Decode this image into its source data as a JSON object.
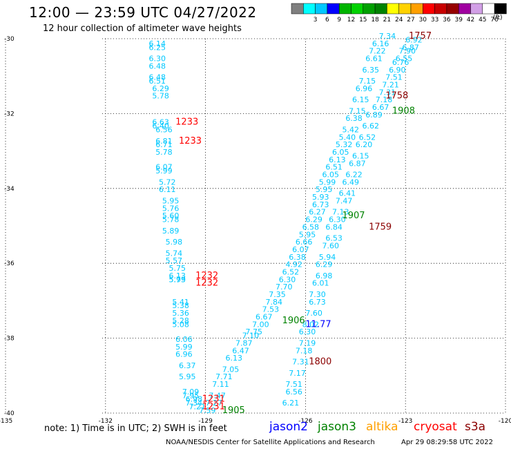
{
  "header": {
    "title": "12:00 — 23:59 UTC 04/27/2022",
    "subtitle": "12 hour collection of altimeter wave heights"
  },
  "color_scale": {
    "units": "(ft)",
    "bins": [
      {
        "label": "",
        "color": "#7f7f7f"
      },
      {
        "label": "3",
        "color": "#00ffff"
      },
      {
        "label": "6",
        "color": "#00c8ff"
      },
      {
        "label": "9",
        "color": "#0000ff"
      },
      {
        "label": "12",
        "color": "#00b400"
      },
      {
        "label": "15",
        "color": "#00d200"
      },
      {
        "label": "18",
        "color": "#00a000"
      },
      {
        "label": "21",
        "color": "#008200"
      },
      {
        "label": "24",
        "color": "#ffff00"
      },
      {
        "label": "27",
        "color": "#ffd200"
      },
      {
        "label": "30",
        "color": "#ffa000"
      },
      {
        "label": "33",
        "color": "#ff0000"
      },
      {
        "label": "36",
        "color": "#c80000"
      },
      {
        "label": "39",
        "color": "#960000"
      },
      {
        "label": "42",
        "color": "#a000a0"
      },
      {
        "label": "45",
        "color": "#d2a0e6"
      },
      {
        "label": "70",
        "color": "#ffffff"
      },
      {
        "label": "",
        "color": "#000000"
      }
    ]
  },
  "axes": {
    "lon_min": -135,
    "lon_max": -120,
    "lat_min": -40,
    "lat_max": -30,
    "x_ticks": [
      {
        "value": -135,
        "label": "-135"
      },
      {
        "value": -132,
        "label": "-132"
      },
      {
        "value": -129,
        "label": "-129"
      },
      {
        "value": -126,
        "label": "-126"
      },
      {
        "value": -123,
        "label": "-123"
      },
      {
        "value": -120,
        "label": "-120"
      }
    ],
    "y_ticks": [
      {
        "value": -30,
        "label": "-30"
      },
      {
        "value": -32,
        "label": "-32"
      },
      {
        "value": -34,
        "label": "-34"
      },
      {
        "value": -36,
        "label": "-36"
      },
      {
        "value": -38,
        "label": "-38"
      },
      {
        "value": -40,
        "label": "-40"
      }
    ],
    "gridlines": "dotted"
  },
  "colors": {
    "wave_low": "#00c8ff",
    "wave_mid": "#00b4e6",
    "jason2": "#0000ff",
    "jason3": "#008200",
    "altika": "#ffa000",
    "cryosat": "#ff0000",
    "s3a": "#8b0000"
  },
  "tracks": [
    {
      "name": "track-west",
      "values": [
        {
          "lon": -130.7,
          "lat": -30.2,
          "v": "6.14"
        },
        {
          "lon": -130.7,
          "lat": -30.3,
          "v": "6.25"
        },
        {
          "lon": -130.7,
          "lat": -30.6,
          "v": "6.30"
        },
        {
          "lon": -130.7,
          "lat": -30.8,
          "v": "6.48"
        },
        {
          "lon": -130.7,
          "lat": -31.1,
          "v": "6.48"
        },
        {
          "lon": -130.7,
          "lat": -31.2,
          "v": "6.51"
        },
        {
          "lon": -130.6,
          "lat": -31.4,
          "v": "6.29"
        },
        {
          "lon": -130.6,
          "lat": -31.6,
          "v": "5.78"
        },
        {
          "lon": -130.6,
          "lat": -32.3,
          "v": "6.63"
        },
        {
          "lon": -130.6,
          "lat": -32.4,
          "v": "6.40"
        },
        {
          "lon": -130.5,
          "lat": -32.5,
          "v": "6.56"
        },
        {
          "lon": -130.5,
          "lat": -32.8,
          "v": "6.81"
        },
        {
          "lon": -130.5,
          "lat": -32.9,
          "v": "6.71"
        },
        {
          "lon": -130.5,
          "lat": -33.1,
          "v": "5.78"
        },
        {
          "lon": -130.5,
          "lat": -33.5,
          "v": "6.07"
        },
        {
          "lon": -130.5,
          "lat": -33.6,
          "v": "5.99"
        },
        {
          "lon": -130.4,
          "lat": -33.9,
          "v": "5.72"
        },
        {
          "lon": -130.4,
          "lat": -34.1,
          "v": "6.11"
        },
        {
          "lon": -130.3,
          "lat": -34.4,
          "v": "5.95"
        },
        {
          "lon": -130.3,
          "lat": -34.6,
          "v": "5.76"
        },
        {
          "lon": -130.3,
          "lat": -34.8,
          "v": "5.60"
        },
        {
          "lon": -130.3,
          "lat": -34.9,
          "v": "5.78"
        },
        {
          "lon": -130.3,
          "lat": -35.2,
          "v": "5.89"
        },
        {
          "lon": -130.2,
          "lat": -35.5,
          "v": "5.98"
        },
        {
          "lon": -130.2,
          "lat": -35.8,
          "v": "5.74"
        },
        {
          "lon": -130.2,
          "lat": -36.0,
          "v": "5.57"
        },
        {
          "lon": -130.1,
          "lat": -36.2,
          "v": "5.75"
        },
        {
          "lon": -130.1,
          "lat": -36.4,
          "v": "6.13"
        },
        {
          "lon": -130.1,
          "lat": -36.5,
          "v": "5.79"
        },
        {
          "lon": -130.1,
          "lat": -36.5,
          "v": "5.93"
        },
        {
          "lon": -130.0,
          "lat": -37.1,
          "v": "5.41"
        },
        {
          "lon": -130.0,
          "lat": -37.2,
          "v": "5.38"
        },
        {
          "lon": -130.0,
          "lat": -37.4,
          "v": "5.36"
        },
        {
          "lon": -130.0,
          "lat": -37.6,
          "v": "5.28"
        },
        {
          "lon": -130.0,
          "lat": -37.7,
          "v": "5.08"
        },
        {
          "lon": -129.9,
          "lat": -38.1,
          "v": "6.06"
        },
        {
          "lon": -129.9,
          "lat": -38.3,
          "v": "5.99"
        },
        {
          "lon": -129.9,
          "lat": -38.5,
          "v": "6.96"
        },
        {
          "lon": -129.8,
          "lat": -38.8,
          "v": "6.37"
        },
        {
          "lon": -129.8,
          "lat": -39.1,
          "v": "5.95"
        },
        {
          "lon": -129.7,
          "lat": -39.5,
          "v": "7.09"
        },
        {
          "lon": -129.7,
          "lat": -39.6,
          "v": "7.95"
        },
        {
          "lon": -129.6,
          "lat": -39.7,
          "v": "6.98"
        },
        {
          "lon": -129.6,
          "lat": -39.8,
          "v": "7.34"
        },
        {
          "lon": -129.5,
          "lat": -39.9,
          "v": "7.21"
        },
        {
          "lon": -129.2,
          "lat": -40.0,
          "v": "7.59"
        },
        {
          "lon": -129.0,
          "lat": -39.8,
          "v": "7.27"
        },
        {
          "lon": -128.9,
          "lat": -39.6,
          "v": "7.47"
        }
      ]
    },
    {
      "name": "track-middle",
      "values": [
        {
          "lon": -128.8,
          "lat": -39.3,
          "v": "7.11"
        },
        {
          "lon": -128.7,
          "lat": -39.1,
          "v": "7.71"
        },
        {
          "lon": -128.5,
          "lat": -38.9,
          "v": "7.05"
        },
        {
          "lon": -128.4,
          "lat": -38.6,
          "v": "6.13"
        },
        {
          "lon": -128.2,
          "lat": -38.4,
          "v": "6.47"
        },
        {
          "lon": -128.1,
          "lat": -38.2,
          "v": "7.87"
        },
        {
          "lon": -127.9,
          "lat": -38.0,
          "v": "7.10"
        },
        {
          "lon": -127.8,
          "lat": -37.9,
          "v": "7.75"
        },
        {
          "lon": -127.6,
          "lat": -37.7,
          "v": "7.00"
        },
        {
          "lon": -127.5,
          "lat": -37.5,
          "v": "6.67"
        },
        {
          "lon": -127.3,
          "lat": -37.3,
          "v": "7.53"
        },
        {
          "lon": -127.2,
          "lat": -37.1,
          "v": "7.84"
        },
        {
          "lon": -127.1,
          "lat": -36.9,
          "v": "7.35"
        },
        {
          "lon": -126.9,
          "lat": -36.7,
          "v": "7.70"
        },
        {
          "lon": -126.8,
          "lat": -36.5,
          "v": "6.30"
        },
        {
          "lon": -126.7,
          "lat": -36.3,
          "v": "6.52"
        },
        {
          "lon": -126.6,
          "lat": -36.1,
          "v": "4.92"
        },
        {
          "lon": -126.5,
          "lat": -35.9,
          "v": "6.38"
        },
        {
          "lon": -126.4,
          "lat": -35.7,
          "v": "6.07"
        },
        {
          "lon": -126.3,
          "lat": -35.5,
          "v": "6.66"
        },
        {
          "lon": -126.2,
          "lat": -35.3,
          "v": "5.95"
        },
        {
          "lon": -126.1,
          "lat": -35.1,
          "v": "6.58"
        },
        {
          "lon": -126.0,
          "lat": -34.9,
          "v": "6.29"
        },
        {
          "lon": -125.9,
          "lat": -34.7,
          "v": "6.27"
        },
        {
          "lon": -125.8,
          "lat": -34.5,
          "v": "6.73"
        },
        {
          "lon": -125.8,
          "lat": -34.3,
          "v": "5.93"
        },
        {
          "lon": -125.7,
          "lat": -34.1,
          "v": "5.95"
        },
        {
          "lon": -125.6,
          "lat": -33.9,
          "v": "5.99"
        },
        {
          "lon": -125.5,
          "lat": -33.7,
          "v": "6.05"
        },
        {
          "lon": -125.4,
          "lat": -33.5,
          "v": "6.51"
        },
        {
          "lon": -125.3,
          "lat": -33.3,
          "v": "6.13"
        },
        {
          "lon": -125.2,
          "lat": -33.1,
          "v": "6.05"
        },
        {
          "lon": -125.1,
          "lat": -32.9,
          "v": "5.32"
        },
        {
          "lon": -125.0,
          "lat": -32.7,
          "v": "5.40"
        },
        {
          "lon": -124.9,
          "lat": -32.5,
          "v": "5.42"
        },
        {
          "lon": -124.8,
          "lat": -32.2,
          "v": "6.38"
        },
        {
          "lon": -124.7,
          "lat": -32.0,
          "v": "7.15"
        },
        {
          "lon": -124.6,
          "lat": -31.7,
          "v": "6.15"
        },
        {
          "lon": -124.5,
          "lat": -31.4,
          "v": "6.96"
        },
        {
          "lon": -124.4,
          "lat": -31.2,
          "v": "7.15"
        },
        {
          "lon": -124.3,
          "lat": -30.9,
          "v": "6.35"
        },
        {
          "lon": -124.2,
          "lat": -30.6,
          "v": "6.61"
        },
        {
          "lon": -124.1,
          "lat": -30.4,
          "v": "7.22"
        },
        {
          "lon": -124.0,
          "lat": -30.2,
          "v": "6.16"
        },
        {
          "lon": -123.8,
          "lat": -30.0,
          "v": "7.34"
        }
      ]
    },
    {
      "name": "track-east",
      "values": [
        {
          "lon": -126.7,
          "lat": -39.8,
          "v": "6.21"
        },
        {
          "lon": -126.6,
          "lat": -39.5,
          "v": "6.56"
        },
        {
          "lon": -126.6,
          "lat": -39.3,
          "v": "7.51"
        },
        {
          "lon": -126.5,
          "lat": -39.0,
          "v": "7.17"
        },
        {
          "lon": -126.4,
          "lat": -38.7,
          "v": "7.31"
        },
        {
          "lon": -126.3,
          "lat": -38.4,
          "v": "7.18"
        },
        {
          "lon": -126.2,
          "lat": -38.2,
          "v": "7.19"
        },
        {
          "lon": -126.2,
          "lat": -37.9,
          "v": "6.30"
        },
        {
          "lon": -126.1,
          "lat": -37.7,
          "v": "8.02"
        },
        {
          "lon": -126.0,
          "lat": -37.4,
          "v": "7.60"
        },
        {
          "lon": -125.9,
          "lat": -37.1,
          "v": "6.73"
        },
        {
          "lon": -125.9,
          "lat": -36.9,
          "v": "7.30"
        },
        {
          "lon": -125.8,
          "lat": -36.6,
          "v": "6.01"
        },
        {
          "lon": -125.7,
          "lat": -36.4,
          "v": "6.98"
        },
        {
          "lon": -125.7,
          "lat": -36.1,
          "v": "6.29"
        },
        {
          "lon": -125.6,
          "lat": -35.9,
          "v": "5.94"
        },
        {
          "lon": -125.5,
          "lat": -35.6,
          "v": "7.60"
        },
        {
          "lon": -125.4,
          "lat": -35.4,
          "v": "6.53"
        },
        {
          "lon": -125.4,
          "lat": -35.1,
          "v": "6.84"
        },
        {
          "lon": -125.3,
          "lat": -34.9,
          "v": "6.30"
        },
        {
          "lon": -125.2,
          "lat": -34.7,
          "v": "7.13"
        },
        {
          "lon": -125.1,
          "lat": -34.4,
          "v": "7.47"
        },
        {
          "lon": -125.0,
          "lat": -34.2,
          "v": "6.41"
        },
        {
          "lon": -124.9,
          "lat": -33.9,
          "v": "6.49"
        },
        {
          "lon": -124.8,
          "lat": -33.7,
          "v": "6.22"
        },
        {
          "lon": -124.7,
          "lat": -33.4,
          "v": "6.87"
        },
        {
          "lon": -124.6,
          "lat": -33.2,
          "v": "6.15"
        },
        {
          "lon": -124.5,
          "lat": -32.9,
          "v": "6.20"
        },
        {
          "lon": -124.4,
          "lat": -32.7,
          "v": "6.52"
        },
        {
          "lon": -124.3,
          "lat": -32.4,
          "v": "6.62"
        },
        {
          "lon": -124.2,
          "lat": -32.1,
          "v": "6.89"
        },
        {
          "lon": -124.0,
          "lat": -31.9,
          "v": "6.67"
        },
        {
          "lon": -123.9,
          "lat": -31.7,
          "v": "7.18"
        },
        {
          "lon": -123.8,
          "lat": -31.5,
          "v": "7.31"
        },
        {
          "lon": -123.7,
          "lat": -31.3,
          "v": "7.21"
        },
        {
          "lon": -123.6,
          "lat": -31.1,
          "v": "7.51"
        },
        {
          "lon": -123.5,
          "lat": -30.9,
          "v": "6.90"
        },
        {
          "lon": -123.4,
          "lat": -30.7,
          "v": "6.76"
        },
        {
          "lon": -123.3,
          "lat": -30.6,
          "v": "6.55"
        },
        {
          "lon": -123.2,
          "lat": -30.4,
          "v": "7.90"
        },
        {
          "lon": -123.1,
          "lat": -30.3,
          "v": "6.87"
        },
        {
          "lon": -123.0,
          "lat": -30.1,
          "v": "6.92"
        }
      ]
    }
  ],
  "time_labels": [
    {
      "lon": -129.9,
      "lat": -32.3,
      "text": "1233",
      "sat": "cryosat"
    },
    {
      "lon": -129.8,
      "lat": -32.8,
      "text": "1233",
      "sat": "cryosat"
    },
    {
      "lon": -129.3,
      "lat": -36.4,
      "text": "1232",
      "sat": "cryosat"
    },
    {
      "lon": -129.3,
      "lat": -36.6,
      "text": "1232",
      "sat": "cryosat"
    },
    {
      "lon": -129.1,
      "lat": -39.7,
      "text": "1231",
      "sat": "cryosat"
    },
    {
      "lon": -129.1,
      "lat": -39.9,
      "text": "1231",
      "sat": "cryosat"
    },
    {
      "lon": -128.5,
      "lat": -40.0,
      "text": "1905",
      "sat": "jason3"
    },
    {
      "lon": -126.7,
      "lat": -37.6,
      "text": "1906",
      "sat": "jason3"
    },
    {
      "lon": -126.0,
      "lat": -37.7,
      "text": "11.77",
      "sat": "jason2"
    },
    {
      "lon": -124.9,
      "lat": -34.8,
      "text": "1907",
      "sat": "jason3"
    },
    {
      "lon": -124.1,
      "lat": -35.1,
      "text": "1759",
      "sat": "s3a"
    },
    {
      "lon": -125.9,
      "lat": -38.7,
      "text": "1800",
      "sat": "s3a"
    },
    {
      "lon": -123.6,
      "lat": -31.6,
      "text": "1758",
      "sat": "s3a"
    },
    {
      "lon": -123.4,
      "lat": -32.0,
      "text": "1908",
      "sat": "jason3"
    },
    {
      "lon": -122.9,
      "lat": -30.0,
      "text": "1757",
      "sat": "s3a"
    }
  ],
  "footer": {
    "note": "note:  1) Time is in UTC;  2) SWH is in feet",
    "legend": [
      {
        "label": "jason2",
        "sat": "jason2"
      },
      {
        "label": "jason3",
        "sat": "jason3"
      },
      {
        "label": "altika",
        "sat": "altika"
      },
      {
        "label": "cryosat",
        "sat": "cryosat"
      },
      {
        "label": "s3a",
        "sat": "s3a"
      }
    ],
    "credit": "NOAA/NESDIS Center for Satellite Applications and Research",
    "timestamp": "Apr 29 08:29:58 UTC 2022"
  }
}
